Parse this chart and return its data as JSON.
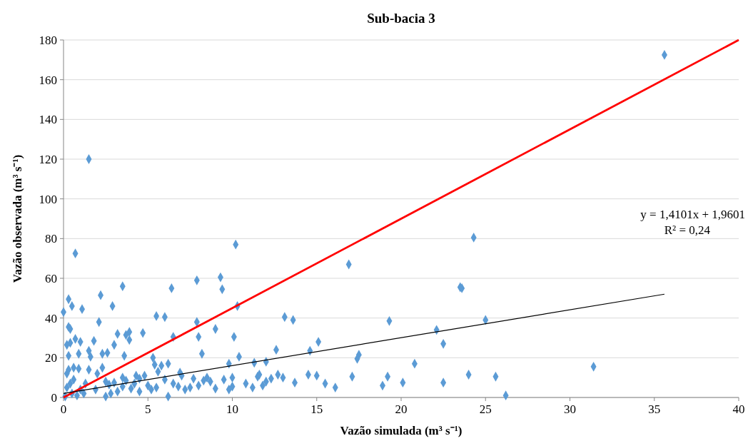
{
  "chart_data": {
    "type": "scatter",
    "title": "Sub-bacia 3",
    "xlabel": "Vazão simulada (m³ s⁻¹)",
    "ylabel": "Vazão observada (m³ s⁻¹)",
    "xlim": [
      0,
      40
    ],
    "xticks": [
      0,
      5,
      10,
      15,
      20,
      25,
      30,
      35,
      40
    ],
    "ylim": [
      0,
      180
    ],
    "yticks": [
      0,
      20,
      40,
      60,
      80,
      100,
      120,
      140,
      160,
      180
    ],
    "grid": "y",
    "annotations": [
      "y = 1,4101x + 1,9601",
      "R² = 0,24"
    ],
    "series": [
      {
        "marker": "diamond",
        "color": "#5b9bd5",
        "x": [
          1.5,
          0.7,
          10.2,
          35.6,
          24.3,
          16.9,
          9.3,
          7.9,
          9.4,
          6.4,
          3.5,
          2.2,
          0.3,
          0.5,
          1.1,
          0,
          2.9,
          10.3,
          22.1,
          23.5,
          23.6,
          25.0,
          19.3,
          13.1,
          13.6,
          5.5,
          6.0,
          3.9,
          3.7,
          3.2,
          4.7,
          9.0,
          7.9,
          8.0,
          6.5,
          10.1,
          0.3,
          0.4,
          0.7,
          1.8,
          0.4,
          0.2,
          3.0,
          1.0,
          3.9,
          2.1,
          0.3,
          0.9,
          1.5,
          1.6,
          2.3,
          2.6,
          3.6,
          8.2,
          10.4,
          12.6,
          14.6,
          15.1,
          17.5,
          17.4,
          22.5,
          20.8,
          31.4,
          15.5,
          16.1,
          17.1,
          19.2,
          18.9,
          20.1,
          22.5,
          24.0,
          25.6,
          26.2,
          14.5,
          15.0,
          13.0,
          12.7,
          13.7,
          11.5,
          11.6,
          12.0,
          11.3,
          9.8,
          6.2,
          5.8,
          5.4,
          5.3,
          5.6,
          4.8,
          4.3,
          4.5,
          10.0,
          9.5,
          8.7,
          8.3,
          7.7,
          7.0,
          6.9,
          6.2,
          2.5,
          1.9,
          1.0,
          0.5,
          0.2,
          0.3,
          0.6,
          0.9,
          1.5,
          2.3,
          2.0,
          2.5,
          3.0,
          3.5,
          4.0,
          3.2,
          2.8,
          1.3,
          0.2,
          0.1,
          0.8,
          1.2,
          5.0,
          5.5,
          6.5,
          7.5,
          8.0,
          9.0,
          10.0,
          10.8,
          11.2,
          12.0,
          4.5,
          6.0,
          7.2,
          8.5,
          3.5,
          2.7,
          0.6,
          0.4,
          11.8,
          9.8,
          12.3,
          6.8,
          5.2,
          4.2,
          3.7
        ],
        "values": [
          120,
          72.5,
          77,
          172.5,
          80.5,
          67,
          60.5,
          59,
          54.5,
          55,
          56,
          51.5,
          49.5,
          46,
          44.5,
          43,
          46,
          46,
          34,
          55.5,
          55,
          39,
          38.5,
          40.5,
          39,
          41,
          40.5,
          33,
          31.5,
          32,
          32.5,
          34.5,
          38,
          30.5,
          30.5,
          30.5,
          35.5,
          34.5,
          29.5,
          28.5,
          27.5,
          26.5,
          26.5,
          28,
          29,
          38,
          21,
          22,
          23.5,
          20.5,
          22,
          22.5,
          21,
          22,
          20.5,
          24,
          23.5,
          28,
          21.5,
          19.5,
          27,
          17,
          15.5,
          7,
          5,
          10.5,
          10.5,
          6,
          7.5,
          7.5,
          11.5,
          10.5,
          1,
          11.5,
          11,
          10,
          11.5,
          7.5,
          10.5,
          11.5,
          18,
          17.5,
          17,
          17,
          16,
          16.5,
          20,
          13,
          11,
          11,
          9.5,
          10,
          9,
          8,
          8.5,
          9.5,
          11,
          12.5,
          0.5,
          0.5,
          4,
          4,
          2,
          12,
          14,
          15,
          14.5,
          14,
          15,
          12,
          8,
          7.5,
          5.5,
          4.5,
          3,
          2,
          7,
          5,
          0.5,
          1,
          2,
          6,
          5,
          7,
          5,
          6,
          4.5,
          5.5,
          7,
          5,
          8,
          3,
          9,
          4,
          10,
          10,
          6.5,
          9,
          7,
          6,
          4,
          9.5,
          5.5,
          4,
          7,
          8.5
        ]
      },
      {
        "type": "line",
        "color": "#ff0000",
        "x": [
          0,
          40
        ],
        "values": [
          0,
          180
        ]
      },
      {
        "type": "line",
        "color": "#000000",
        "x": [
          0,
          35.6
        ],
        "values": [
          2,
          52
        ]
      }
    ],
    "line_style": "solid"
  }
}
